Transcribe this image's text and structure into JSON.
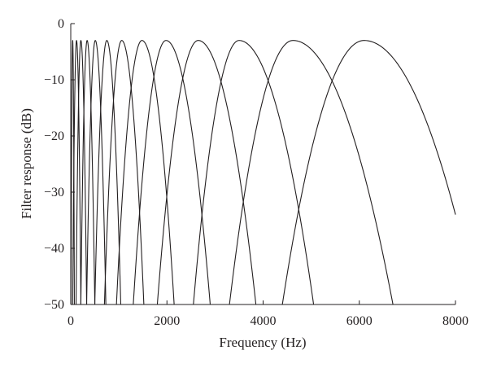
{
  "chart_data": {
    "type": "line",
    "title": "",
    "xlabel": "Frequency (Hz)",
    "ylabel": "Filter response (dB)",
    "xlim": [
      0,
      8000
    ],
    "ylim": [
      -50,
      0
    ],
    "xticks": [
      0,
      2000,
      4000,
      6000,
      8000
    ],
    "yticks": [
      0,
      -10,
      -20,
      -30,
      -40,
      -50
    ],
    "xtick_labels": [
      "0",
      "2000",
      "4000",
      "6000",
      "8000"
    ],
    "ytick_labels": [
      "0",
      "−10",
      "−20",
      "−30",
      "−40",
      "−50"
    ],
    "grid": false,
    "legend": "none",
    "line_color": "#231f20",
    "peak_db": -3,
    "series": [
      {
        "center_freq": 40,
        "low_freq_at_floor": 5,
        "high_freq_at_floor": 75
      },
      {
        "center_freq": 120,
        "low_freq_at_floor": 40,
        "high_freq_at_floor": 210
      },
      {
        "center_freq": 210,
        "low_freq_at_floor": 110,
        "high_freq_at_floor": 330
      },
      {
        "center_freq": 340,
        "low_freq_at_floor": 210,
        "high_freq_at_floor": 500
      },
      {
        "center_freq": 510,
        "low_freq_at_floor": 330,
        "high_freq_at_floor": 730
      },
      {
        "center_freq": 750,
        "low_freq_at_floor": 500,
        "high_freq_at_floor": 1040
      },
      {
        "center_freq": 1060,
        "low_freq_at_floor": 700,
        "high_freq_at_floor": 1520
      },
      {
        "center_freq": 1480,
        "low_freq_at_floor": 950,
        "high_freq_at_floor": 2150
      },
      {
        "center_freq": 1980,
        "low_freq_at_floor": 1300,
        "high_freq_at_floor": 2900
      },
      {
        "center_freq": 2650,
        "low_freq_at_floor": 1800,
        "high_freq_at_floor": 3850
      },
      {
        "center_freq": 3500,
        "low_freq_at_floor": 2550,
        "high_freq_at_floor": 5050
      },
      {
        "center_freq": 4620,
        "low_freq_at_floor": 3300,
        "high_freq_at_floor": 6700
      },
      {
        "center_freq": 6100,
        "low_freq_at_floor": 4400,
        "high_freq_at_floor": 8000,
        "end_db": -34
      }
    ]
  }
}
